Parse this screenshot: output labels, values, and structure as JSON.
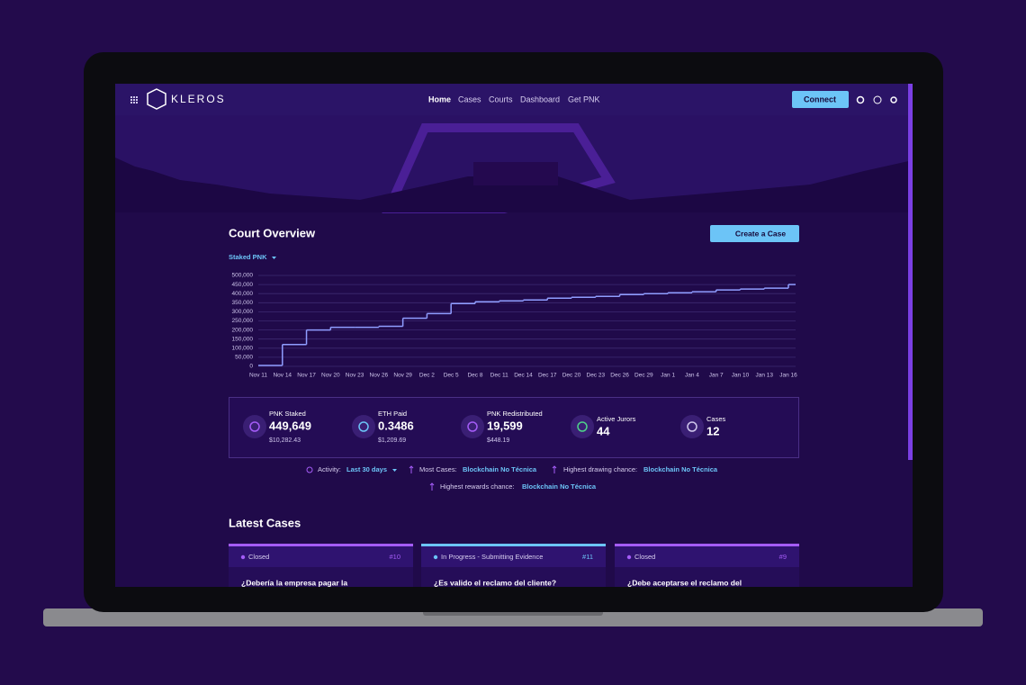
{
  "nav": {
    "brand": "KLEROS",
    "links": [
      "Home",
      "Cases",
      "Courts",
      "Dashboard",
      "Get PNK"
    ],
    "button": "Connect"
  },
  "overview": {
    "title": "Court Overview",
    "button": "Create a Case",
    "selector": "Staked PNK"
  },
  "chart_data": {
    "type": "step-line",
    "categories": [
      "Nov 11",
      "Nov 14",
      "Nov 17",
      "Nov 20",
      "Nov 23",
      "Nov 26",
      "Nov 29",
      "Dec 2",
      "Dec 5",
      "Dec 8",
      "Dec 11",
      "Dec 14",
      "Dec 17",
      "Dec 20",
      "Dec 23",
      "Dec 26",
      "Dec 29",
      "Jan 1",
      "Jan 4",
      "Jan 7",
      "Jan 10",
      "Jan 13",
      "Jan 16"
    ],
    "series": [
      {
        "name": "Staked PNK",
        "color": "#8f9dff",
        "values": [
          5000,
          120000,
          200000,
          215000,
          215000,
          220000,
          265000,
          290000,
          345000,
          355000,
          360000,
          365000,
          375000,
          380000,
          385000,
          395000,
          400000,
          405000,
          410000,
          420000,
          425000,
          430000,
          450000
        ]
      }
    ],
    "ylim": [
      0,
      500000
    ],
    "yticks": [
      0,
      {
        "value": 50000,
        "label": "50,000"
      },
      {
        "value": 100000,
        "label": "100,000"
      },
      {
        "value": 150000,
        "label": "150,000"
      },
      {
        "value": 200000,
        "label": "200,000"
      },
      {
        "value": 250000,
        "label": "250,000"
      },
      {
        "value": 300000,
        "label": "300,000"
      },
      {
        "value": 350000,
        "label": "350,000"
      },
      {
        "value": 400000,
        "label": "400,000"
      },
      {
        "value": 450000,
        "label": "450,000"
      },
      {
        "value": 500000,
        "label": "500,000"
      }
    ],
    "grid": true
  },
  "stats": [
    {
      "label": "PNK Staked",
      "value": "449,649",
      "sub": "$10,282.43"
    },
    {
      "label": "ETH Paid",
      "value": "0.3486",
      "sub": "$1,209.69"
    },
    {
      "label": "PNK Redistributed",
      "value": "19,599",
      "sub": "$448.19"
    },
    {
      "label": "Active Jurors",
      "value": "44"
    },
    {
      "label": "Cases",
      "value": "12"
    }
  ],
  "activity": {
    "label": "Activity:",
    "period": "Last 30 days",
    "most_cases_label": "Most Cases:",
    "most_cases": "Blockchain No Técnica",
    "drawing_label": "Highest drawing chance:",
    "drawing": "Blockchain No Técnica",
    "rewards_label": "Highest rewards chance:",
    "rewards": "Blockchain No Técnica"
  },
  "latest": {
    "title": "Latest Cases",
    "cases": [
      {
        "status": "Closed",
        "number": "#10",
        "title": "¿Debería la empresa pagar la"
      },
      {
        "status": "In Progress - Submitting Evidence",
        "number": "#11",
        "title": "¿Es valido el reclamo del cliente?"
      },
      {
        "status": "Closed",
        "number": "#9",
        "title": "¿Debe aceptarse el reclamo del"
      }
    ]
  }
}
